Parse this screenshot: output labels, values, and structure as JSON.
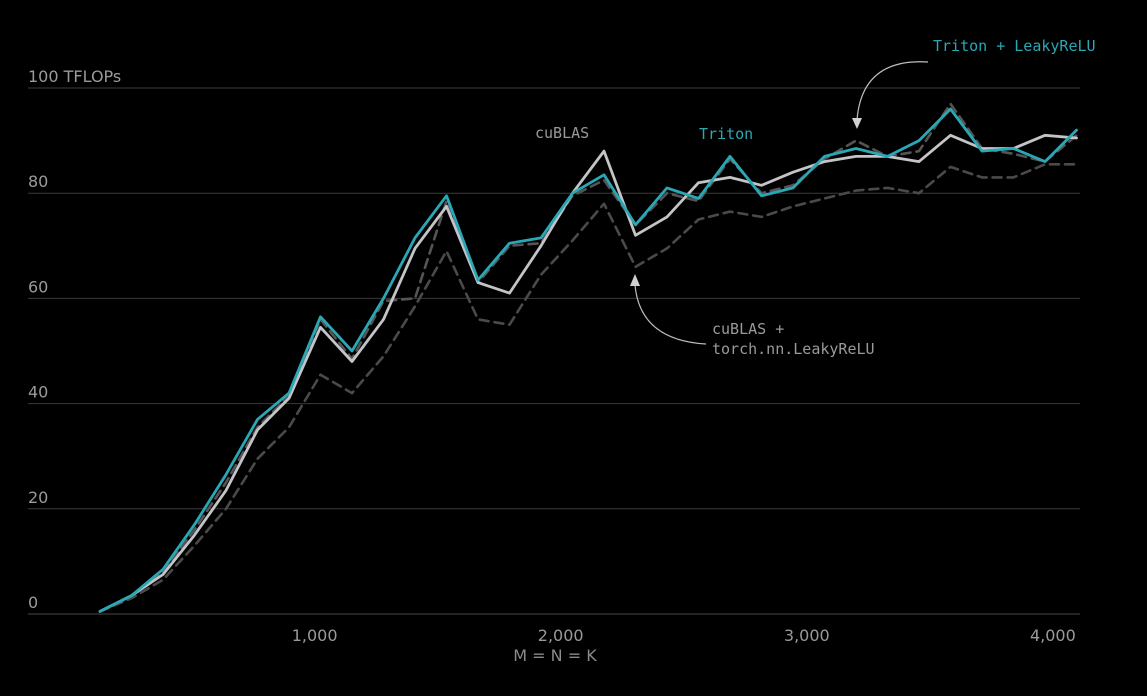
{
  "chart_data": {
    "type": "line",
    "title": "",
    "xlabel": "M = N = K",
    "ylabel": "",
    "y_unit_label": "100 TFLOPs",
    "xlim": [
      0,
      4100
    ],
    "ylim": [
      0,
      100
    ],
    "grid": true,
    "x_ticks": [
      {
        "value": 1000,
        "label": "1,000"
      },
      {
        "value": 2000,
        "label": "2,000"
      },
      {
        "value": 3000,
        "label": "3,000"
      },
      {
        "value": 4000,
        "label": "4,000"
      }
    ],
    "y_ticks": [
      {
        "value": 0,
        "label": "0"
      },
      {
        "value": 20,
        "label": "20"
      },
      {
        "value": 40,
        "label": "40"
      },
      {
        "value": 60,
        "label": "60"
      },
      {
        "value": 80,
        "label": "80"
      }
    ],
    "x": [
      128,
      256,
      384,
      512,
      640,
      768,
      896,
      1024,
      1152,
      1280,
      1408,
      1536,
      1664,
      1792,
      1920,
      2048,
      2176,
      2304,
      2432,
      2560,
      2688,
      2816,
      2944,
      3072,
      3200,
      3328,
      3456,
      3584,
      3712,
      3840,
      3968,
      4096
    ],
    "series": [
      {
        "name": "Triton + LeakyReLU",
        "color": "#555555",
        "style": "dashed",
        "values": [
          0.5,
          3.5,
          8.0,
          16.0,
          25.0,
          35.5,
          41.5,
          56.0,
          48.5,
          59.5,
          60.0,
          78.5,
          63.0,
          70.0,
          70.5,
          79.5,
          82.5,
          74.0,
          80.0,
          78.5,
          86.5,
          80.0,
          81.5,
          86.5,
          90.0,
          87.0,
          88.0,
          97.0,
          88.5,
          87.5,
          86.0,
          91.0
        ]
      },
      {
        "name": "cuBLAS + torch.nn.LeakyReLU",
        "color": "#4a4a4a",
        "style": "dashed",
        "values": [
          0.5,
          3.0,
          6.5,
          13.0,
          20.0,
          29.5,
          35.5,
          45.5,
          42.0,
          49.0,
          58.5,
          69.0,
          56.0,
          55.0,
          64.5,
          71.0,
          78.0,
          66.0,
          69.5,
          75.0,
          76.5,
          75.5,
          77.5,
          79.0,
          80.5,
          81.0,
          80.0,
          85.0,
          83.0,
          83.0,
          85.5,
          85.5
        ]
      },
      {
        "name": "cuBLAS",
        "color": "#c3c3c8",
        "style": "solid",
        "values": [
          0.5,
          3.5,
          7.5,
          15.0,
          23.5,
          35.0,
          41.0,
          54.5,
          48.0,
          56.0,
          69.5,
          77.5,
          63.0,
          61.0,
          70.0,
          80.0,
          88.0,
          72.0,
          75.5,
          82.0,
          83.0,
          81.5,
          84.0,
          86.0,
          87.0,
          87.0,
          86.0,
          91.0,
          88.5,
          88.5,
          91.0,
          90.5
        ]
      },
      {
        "name": "Triton",
        "color": "#2aa7b5",
        "style": "solid",
        "values": [
          0.5,
          3.5,
          8.5,
          17.0,
          26.5,
          37.0,
          42.0,
          56.5,
          50.0,
          60.0,
          71.5,
          79.5,
          63.5,
          70.5,
          71.5,
          80.0,
          83.5,
          74.0,
          81.0,
          79.0,
          87.0,
          79.5,
          81.0,
          87.0,
          88.5,
          87.0,
          90.0,
          96.0,
          88.0,
          88.5,
          86.0,
          92.0
        ]
      }
    ],
    "annotations": [
      {
        "text": "cuBLAS",
        "color": "#9a9a9a"
      },
      {
        "text": "Triton",
        "color": "#2aa7b5"
      },
      {
        "text": "Triton + LeakyReLU",
        "color": "#2aa7b5"
      },
      {
        "line1": "cuBLAS +",
        "line2": "torch.nn.LeakyReLU",
        "color": "#9a9a9a"
      }
    ]
  }
}
